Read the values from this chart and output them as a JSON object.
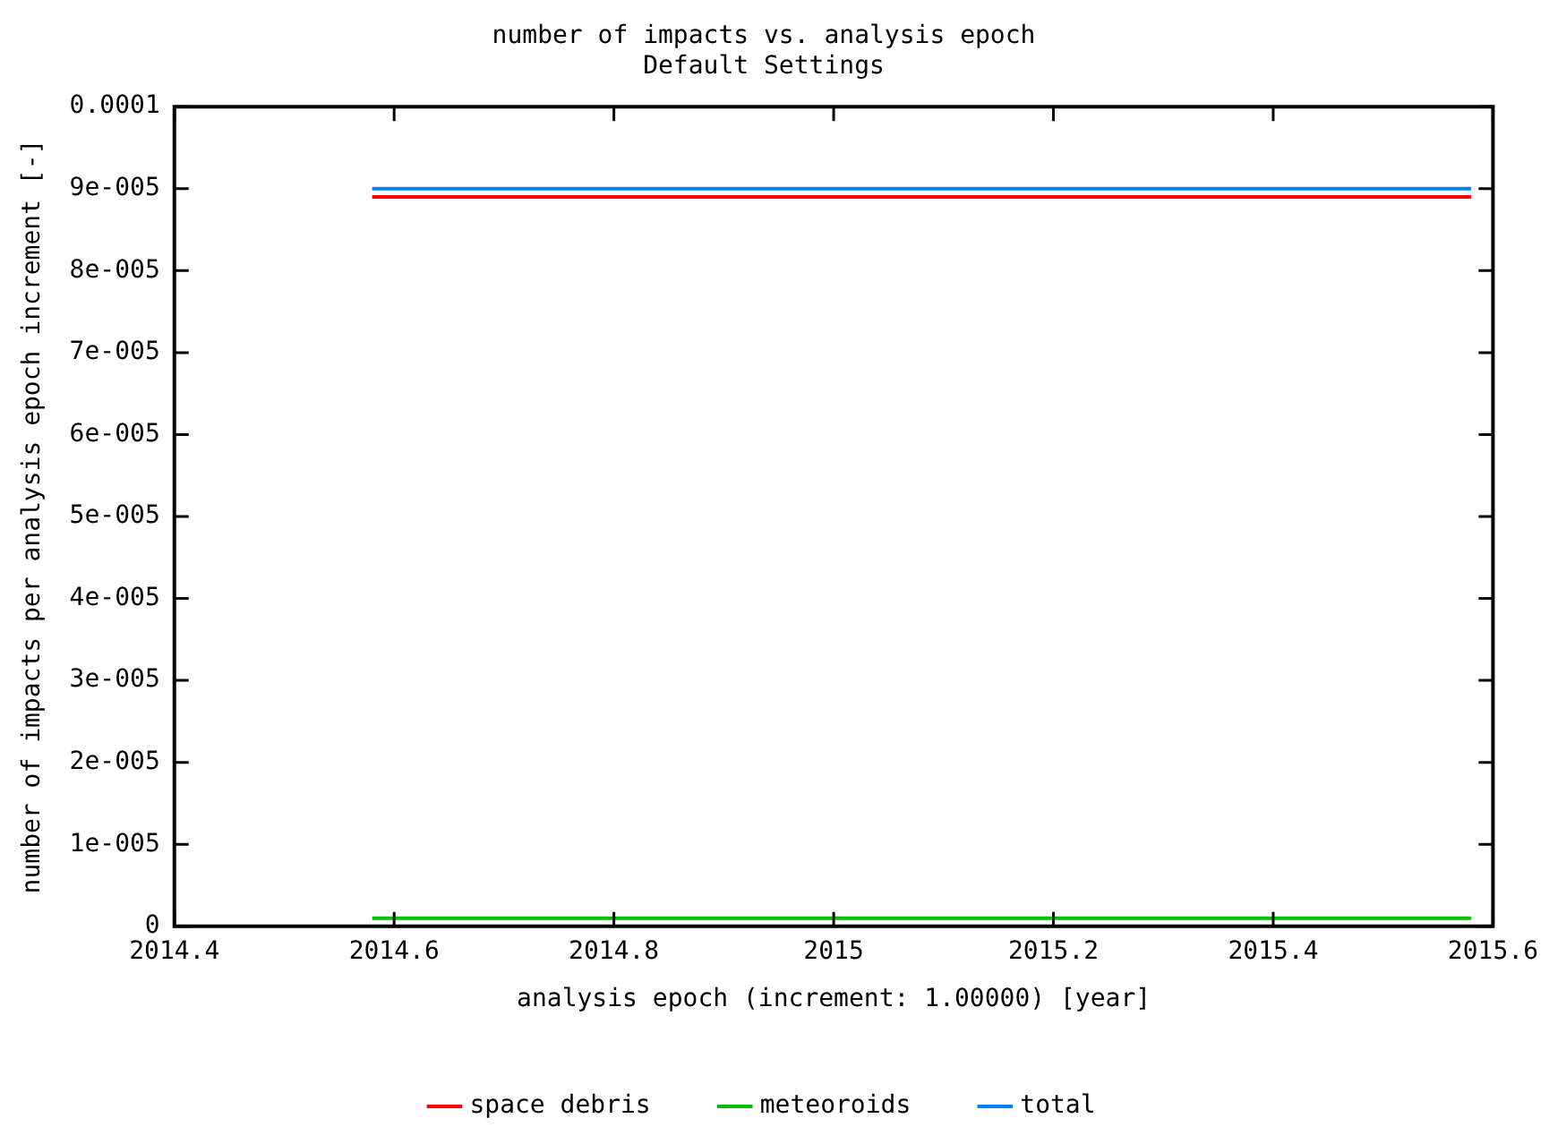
{
  "chart_data": {
    "type": "line",
    "title": "number of impacts vs. analysis epoch",
    "subtitle": "Default Settings",
    "xlabel": "analysis epoch (increment: 1.00000) [year]",
    "ylabel": "number of impacts per analysis epoch increment [-]",
    "x": [
      2014.58,
      2015.58
    ],
    "series": [
      {
        "name": "space debris",
        "color": "#ff0000",
        "values": [
          8.9e-05,
          8.9e-05
        ]
      },
      {
        "name": "meteoroids",
        "color": "#00c000",
        "values": [
          1e-06,
          1e-06
        ]
      },
      {
        "name": "total",
        "color": "#0080ff",
        "values": [
          9e-05,
          9e-05
        ]
      }
    ],
    "xlim": [
      2014.4,
      2015.6
    ],
    "xticks": [
      2014.4,
      2014.6,
      2014.8,
      2015,
      2015.2,
      2015.4,
      2015.6
    ],
    "ylim": [
      0,
      0.0001
    ],
    "yticks": [
      0,
      {
        "value": 1e-05,
        "label": "1e-005"
      },
      {
        "value": 2e-05,
        "label": "2e-005"
      },
      {
        "value": 3e-05,
        "label": "3e-005"
      },
      {
        "value": 4e-05,
        "label": "4e-005"
      },
      {
        "value": 5e-05,
        "label": "5e-005"
      },
      {
        "value": 6e-05,
        "label": "6e-005"
      },
      {
        "value": 7e-05,
        "label": "7e-005"
      },
      {
        "value": 8e-05,
        "label": "8e-005"
      },
      {
        "value": 9e-05,
        "label": "9e-005"
      },
      0.0001
    ],
    "grid": false,
    "legend": "bottom",
    "marker": "none",
    "line_style": "solid"
  }
}
